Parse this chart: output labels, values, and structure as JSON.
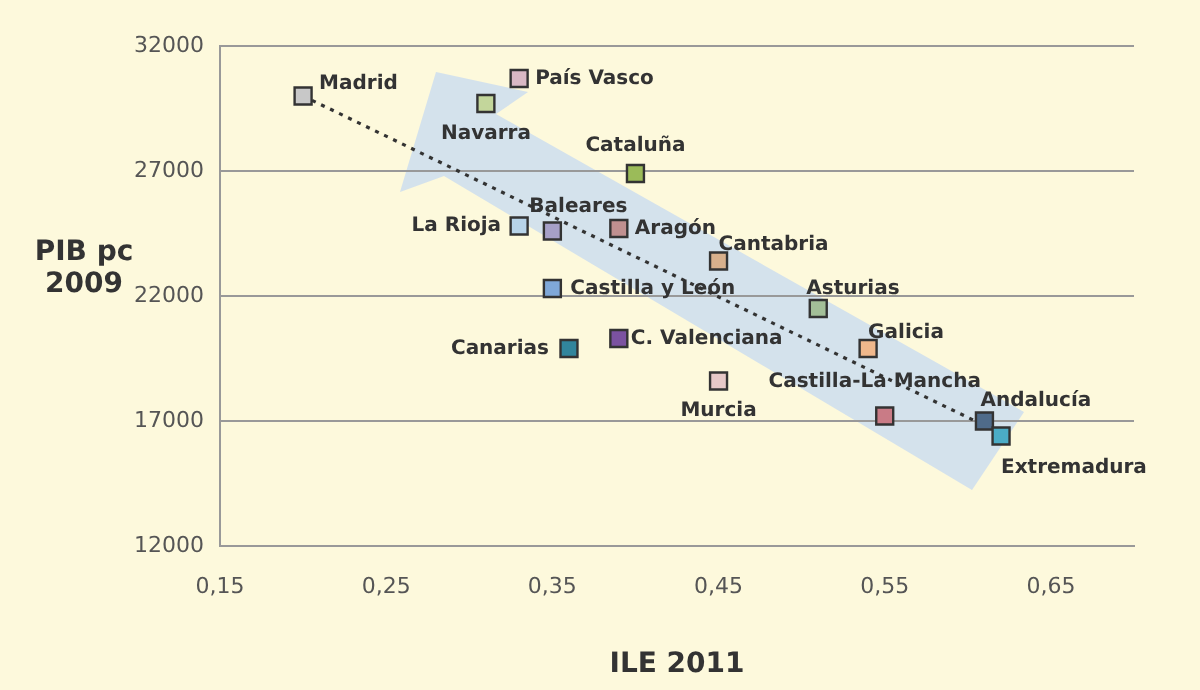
{
  "chart_data": {
    "type": "scatter",
    "xlabel": "ILE 2011",
    "ylabel": "PIB pc 2009",
    "xlim": [
      0.15,
      0.7
    ],
    "xticks": [
      {
        "value": 0.15,
        "label": "0,15"
      },
      {
        "value": 0.25,
        "label": "0,25"
      },
      {
        "value": 0.35,
        "label": "0,35"
      },
      {
        "value": 0.45,
        "label": "0,45"
      },
      {
        "value": 0.55,
        "label": "0,55"
      },
      {
        "value": 0.65,
        "label": "0,65"
      }
    ],
    "ylim": [
      12000,
      32000
    ],
    "yticks": [
      12000,
      17000,
      22000,
      27000,
      32000
    ],
    "grid": "y",
    "legend": false,
    "marker": "square",
    "series": [
      {
        "x": [
          0.2,
          0.33,
          0.31,
          0.4,
          0.33,
          0.35,
          0.39,
          0.45,
          0.35,
          0.51,
          0.39,
          0.36,
          0.54,
          0.45,
          0.55,
          0.61,
          0.62
        ],
        "values": [
          30000,
          30700,
          29700,
          26900,
          24800,
          24600,
          24700,
          23400,
          22300,
          21500,
          20300,
          19900,
          19900,
          18600,
          17200,
          17000,
          16400
        ],
        "colors": [
          "#c8c8c8",
          "#d9b8c4",
          "#c3d69b",
          "#9bbb59",
          "#b7d3e8",
          "#a6a0c8",
          "#c09090",
          "#d8b08c",
          "#7fa8d8",
          "#a3bf98",
          "#7b52a0",
          "#31859c",
          "#f0b88c",
          "#e6c8c8",
          "#c97b86",
          "#4f6b8a",
          "#4bacc6"
        ]
      },
      {
        "type": "line",
        "x": [
          0.2,
          0.62
        ],
        "values": [
          30000,
          16500
        ],
        "color": "#333333",
        "line_style": "dotted",
        "marker": "none"
      }
    ],
    "annotations": [
      {
        "text": "Madrid",
        "x": 0.2,
        "y": 30000
      },
      {
        "text": "País Vasco",
        "x": 0.33,
        "y": 30700
      },
      {
        "text": "Navarra",
        "x": 0.31,
        "y": 29700
      },
      {
        "text": "Cataluña",
        "x": 0.4,
        "y": 26900
      },
      {
        "text": "La Rioja",
        "x": 0.33,
        "y": 24800
      },
      {
        "text": "Baleares",
        "x": 0.35,
        "y": 24600
      },
      {
        "text": "Aragón",
        "x": 0.39,
        "y": 24700
      },
      {
        "text": "Cantabria",
        "x": 0.45,
        "y": 23400
      },
      {
        "text": "Castilla y León",
        "x": 0.35,
        "y": 22300
      },
      {
        "text": "Asturias",
        "x": 0.51,
        "y": 21500
      },
      {
        "text": "C. Valenciana",
        "x": 0.39,
        "y": 20300
      },
      {
        "text": "Canarias",
        "x": 0.36,
        "y": 19900
      },
      {
        "text": "Galicia",
        "x": 0.54,
        "y": 19900
      },
      {
        "text": "Murcia",
        "x": 0.45,
        "y": 18600
      },
      {
        "text": "Castilla-La Mancha",
        "x": 0.55,
        "y": 17200
      },
      {
        "text": "Andalucía",
        "x": 0.61,
        "y": 17000
      },
      {
        "text": "Extremadura",
        "x": 0.62,
        "y": 16400
      }
    ]
  }
}
